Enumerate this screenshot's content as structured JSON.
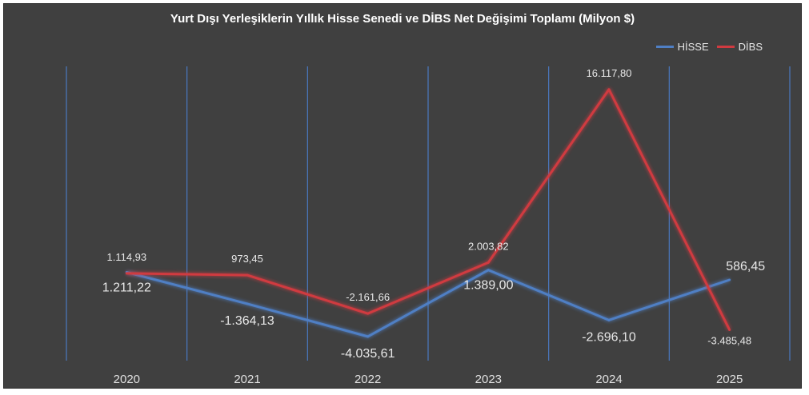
{
  "chart_data": {
    "type": "line",
    "title": "Yurt Dışı Yerleşiklerin Yıllık Hisse Senedi ve DİBS Net Değişimi Toplamı (Milyon $)",
    "xlabel": "",
    "ylabel": "",
    "categories": [
      "2020",
      "2021",
      "2022",
      "2023",
      "2024",
      "2025"
    ],
    "series": [
      {
        "name": "HİSSE",
        "color": "#4f7fc4",
        "values": [
          1211.22,
          -1364.13,
          -4035.61,
          1389.0,
          -2696.1,
          586.45
        ],
        "labels": [
          "1.211,22",
          "-1.364,13",
          "-4.035,61",
          "1.389,00",
          "-2.696,10",
          "586,45"
        ]
      },
      {
        "name": "DİBS",
        "color": "#d03a40",
        "values": [
          1114.93,
          973.45,
          -2161.66,
          2003.82,
          16117.8,
          -3485.48
        ],
        "labels": [
          "1.114,93",
          "973,45",
          "-2.161,66",
          "2.003,82",
          "16.117,80",
          "-3.485,48"
        ]
      }
    ],
    "ylim": [
      -6000,
      18000
    ],
    "y_axis_visible": false,
    "vertical_gridlines": true,
    "gridline_color": "#4a78c0",
    "legend_position": "top-right",
    "background": "#404040"
  }
}
